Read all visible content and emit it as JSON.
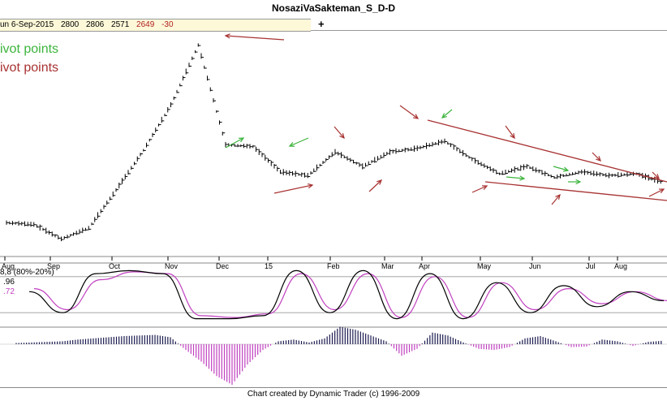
{
  "window": {
    "title": "NosaziVaSakteman_S_D-D"
  },
  "infobar": {
    "date": "un 6-Sep-2015",
    "open": "2800",
    "high": "2806",
    "low": "2571",
    "close": "2649",
    "change": "-30",
    "add_symbol": "+"
  },
  "legend": {
    "green": "ivot points",
    "red": "ivot points"
  },
  "indicator": {
    "label": "8,8 (80%-20%)",
    "value_black": ".96",
    "value_purple": ".72"
  },
  "footer": {
    "credit": "Chart created by Dynamic Trader  (c)  1996-2009"
  },
  "colors": {
    "up_arrow": "#3cb43c",
    "down_arrow": "#a83232",
    "stoch_fast": "#000000",
    "stoch_slow": "#c040c0",
    "hist_pos": "#1a1a50",
    "hist_neg": "#c040c0"
  },
  "chart_data": [
    {
      "type": "line",
      "title": "NosaziVaSakteman_S_D-D",
      "xlabel": "",
      "ylabel": "",
      "x_tick_labels": [
        "Aug",
        "Sep",
        "Oct",
        "Nov",
        "Dec",
        "15",
        "Feb",
        "Mar",
        "Apr",
        "May",
        "Jun",
        "Jul",
        "Aug"
      ],
      "x": [
        "Aug",
        "Sep",
        "Sep",
        "Oct",
        "Oct",
        "Nov",
        "Nov",
        "Dec",
        "Dec",
        "15",
        "15",
        "Feb",
        "Feb",
        "Mar",
        "Mar",
        "Apr",
        "Apr",
        "May",
        "May",
        "Jun",
        "Jun",
        "Jul",
        "Jul",
        "Aug",
        "Aug"
      ],
      "series": [
        {
          "values": [
            2000,
            1990,
            1910,
            1970,
            2180,
            2400,
            2650,
            2980,
            2430,
            2420,
            2280,
            2260,
            2390,
            2310,
            2390,
            2410,
            2450,
            2350,
            2270,
            2310,
            2250,
            2280,
            2260,
            2270,
            2220
          ]
        }
      ],
      "annotations": [
        "green up-arrows and red down-arrows mark pivot points",
        "converging trendlines from Apr high and May low"
      ]
    },
    {
      "type": "line",
      "title": "",
      "series": [
        {
          "values": [
            55,
            20,
            85,
            90,
            85,
            10,
            10,
            15,
            90,
            20,
            90,
            10,
            85,
            10,
            70,
            20,
            65,
            30,
            55,
            40
          ]
        },
        {
          "values": [
            60,
            25,
            75,
            88,
            85,
            15,
            12,
            18,
            85,
            25,
            85,
            12,
            80,
            12,
            70,
            25,
            60,
            35,
            55,
            40
          ]
        }
      ],
      "ylim": [
        0,
        100
      ],
      "levels": [
        80,
        20
      ]
    },
    {
      "type": "bar",
      "title": "",
      "values": [
        2,
        3,
        4,
        5,
        8,
        10,
        12,
        14,
        15,
        16,
        12,
        -10,
        -30,
        -55,
        -70,
        -35,
        -10,
        5,
        8,
        3,
        10,
        30,
        25,
        15,
        5,
        -20,
        -8,
        20,
        15,
        3,
        -8,
        -10,
        -5,
        10,
        14,
        5,
        -5,
        -4,
        8,
        5,
        -3,
        4,
        6
      ]
    }
  ]
}
